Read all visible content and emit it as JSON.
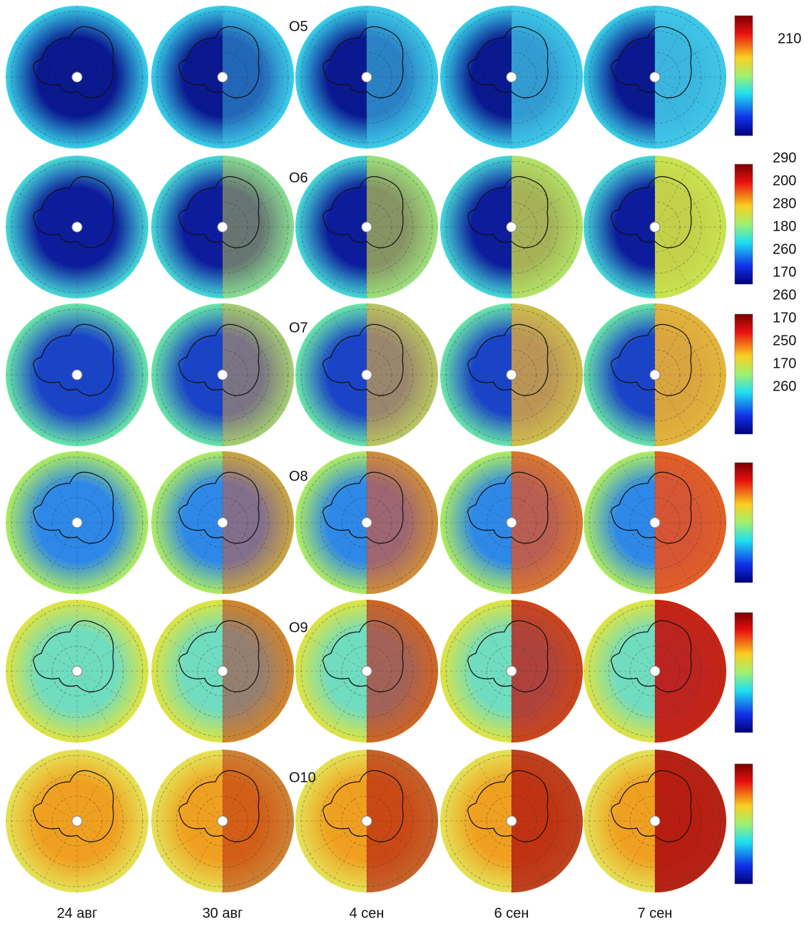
{
  "row_labels": [
    "O5",
    "O6",
    "O7",
    "O8",
    "O9",
    "O10"
  ],
  "column_labels": [
    "24 авг",
    "30 авг",
    "4 сен",
    "6 сен",
    "7 сен"
  ],
  "colorbar_labels": [
    "210",
    "290",
    "200",
    "280",
    "180",
    "260",
    "170",
    "260",
    "170",
    "250",
    "170",
    "260"
  ]
}
